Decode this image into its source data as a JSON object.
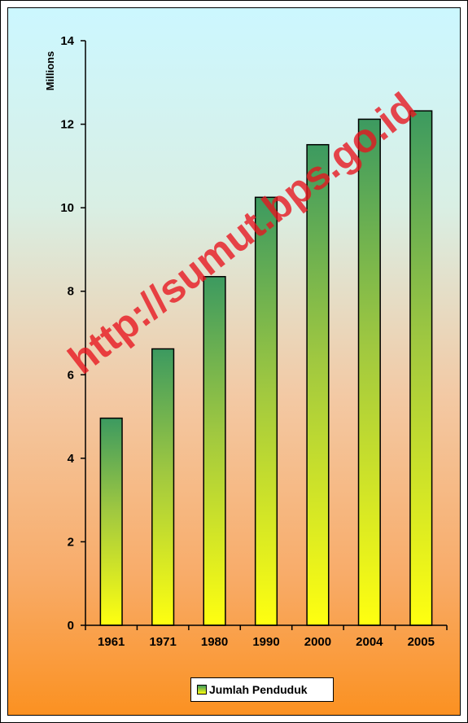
{
  "chart_data": {
    "type": "bar",
    "categories": [
      "1961",
      "1971",
      "1980",
      "1990",
      "2000",
      "2004",
      "2005"
    ],
    "series": [
      {
        "name": "Jumlah Penduduk",
        "values": [
          4.96,
          6.62,
          8.35,
          10.25,
          11.51,
          12.12,
          12.32
        ]
      }
    ],
    "ylabel": "Millions",
    "ylim": [
      0,
      14
    ],
    "yticks": [
      "0",
      "2",
      "4",
      "6",
      "8",
      "10",
      "12",
      "14"
    ],
    "grid": false,
    "legend": "bottom",
    "bar_gradient": {
      "top": "#3c9a60",
      "bottom": "#ffff10"
    },
    "watermark": "http://sumut.bps.go.id",
    "watermark_color": "#e8141e"
  }
}
